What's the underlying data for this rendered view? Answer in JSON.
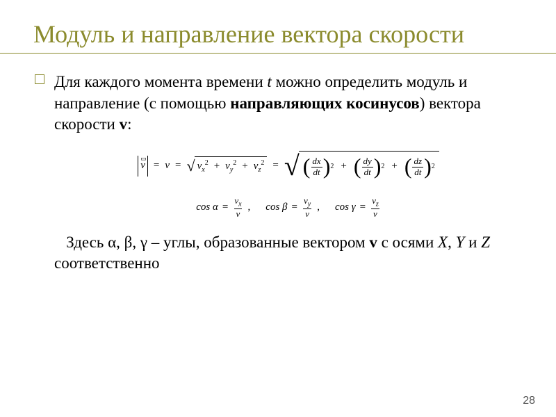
{
  "colors": {
    "accent": "#8b8b2d",
    "text": "#000000",
    "background": "#ffffff",
    "pagenum": "#555555"
  },
  "title": "Модуль и направление вектора скорости",
  "bullet": {
    "pre": "Для каждого момента времени ",
    "t": "t",
    "mid": " можно определить модуль и направление (с помощью ",
    "bold": "направляющих косинусов",
    "post1": ") вектора скорости ",
    "v": "v",
    "post2": ":"
  },
  "equation1": {
    "vec_symbol": "v",
    "arrow": "▭",
    "eq1": "=",
    "v_rhs": "v",
    "eq2": "=",
    "sqrt1": {
      "t1_base": "v",
      "t1_sub": "x",
      "t1_sup": "2",
      "plus1": "+",
      "t2_base": "v",
      "t2_sub": "y",
      "t2_sup": "2",
      "plus2": "+",
      "t3_base": "v",
      "t3_sub": "z",
      "t3_sup": "2"
    },
    "eq3": "=",
    "sqrt2": {
      "f1_num": "dx",
      "f1_den": "dt",
      "f1_sup": "2",
      "plus1": "+",
      "f2_num": "dy",
      "f2_den": "dt",
      "f2_sup": "2",
      "plus2": "+",
      "f3_num": "dz",
      "f3_den": "dt",
      "f3_sup": "2"
    }
  },
  "equation2": {
    "c1": {
      "lhs": "cos α",
      "eq": "=",
      "num_base": "v",
      "num_sub": "x",
      "den": "v",
      "sep": ","
    },
    "c2": {
      "lhs": "cos β",
      "eq": "=",
      "num_base": "v",
      "num_sub": "y",
      "den": "v",
      "sep": ","
    },
    "c3": {
      "lhs": "cos γ",
      "eq": "=",
      "num_base": "v",
      "num_sub": "z",
      "den": "v"
    }
  },
  "conclusion": {
    "pre": "Здесь α, β, γ – углы, образованные вектором ",
    "v": "v",
    "mid": " с осями ",
    "x": "X",
    "c1": ", ",
    "y": "Y",
    "c2": " и ",
    "z": "Z",
    "post": " соответственно"
  },
  "page_number": "28"
}
